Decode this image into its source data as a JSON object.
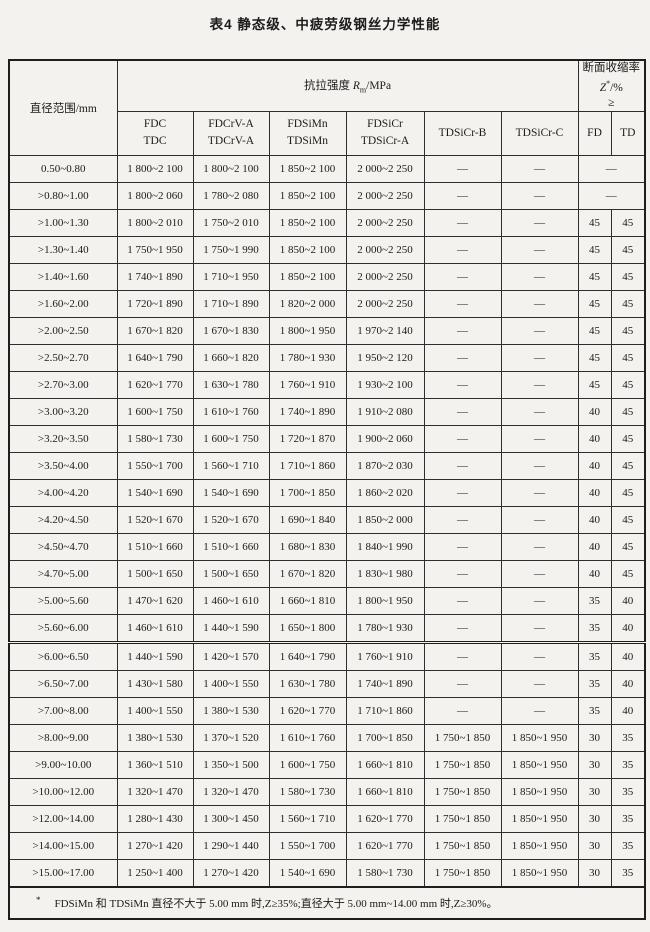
{
  "title": "表4  静态级、中疲劳级钢丝力学性能",
  "table": {
    "diameter_header": "直径范围/mm",
    "tensile_header": {
      "prefix": "抗拉强度 ",
      "symbol": "R",
      "subscript": "m",
      "suffix": "/MPa"
    },
    "reduction_header": {
      "line1": "断面收缩率",
      "symbol": "Z",
      "superscript": "*",
      "suffix": "/%",
      "line3": "≥"
    },
    "grade_columns": [
      {
        "line1": "FDC",
        "line2": "TDC"
      },
      {
        "line1": "FDCrV-A",
        "line2": "TDCrV-A"
      },
      {
        "line1": "FDSiMn",
        "line2": "TDSiMn"
      },
      {
        "line1": "FDSiCr",
        "line2": "TDSiCr-A"
      },
      {
        "line1": "TDSiCr-B",
        "line2": ""
      },
      {
        "line1": "TDSiCr-C",
        "line2": ""
      }
    ],
    "fd_label": "FD",
    "td_label": "TD",
    "dash": "—",
    "rows": [
      {
        "d": "0.50~0.80",
        "c": [
          "1 800~2 100",
          "1 800~2 100",
          "1 850~2 100",
          "2 000~2 250",
          "—",
          "—"
        ],
        "fd": "—",
        "td": "",
        "fdtd_merged": true,
        "section_break": false
      },
      {
        "d": ">0.80~1.00",
        "c": [
          "1 800~2 060",
          "1 780~2 080",
          "1 850~2 100",
          "2 000~2 250",
          "—",
          "—"
        ],
        "fd": "—",
        "td": "",
        "fdtd_merged": true,
        "section_break": false
      },
      {
        "d": ">1.00~1.30",
        "c": [
          "1 800~2 010",
          "1 750~2 010",
          "1 850~2 100",
          "2 000~2 250",
          "—",
          "—"
        ],
        "fd": "45",
        "td": "45",
        "fdtd_merged": false,
        "section_break": false
      },
      {
        "d": ">1.30~1.40",
        "c": [
          "1 750~1 950",
          "1 750~1 990",
          "1 850~2 100",
          "2 000~2 250",
          "—",
          "—"
        ],
        "fd": "45",
        "td": "45",
        "fdtd_merged": false,
        "section_break": false
      },
      {
        "d": ">1.40~1.60",
        "c": [
          "1 740~1 890",
          "1 710~1 950",
          "1 850~2 100",
          "2 000~2 250",
          "—",
          "—"
        ],
        "fd": "45",
        "td": "45",
        "fdtd_merged": false,
        "section_break": false
      },
      {
        "d": ">1.60~2.00",
        "c": [
          "1 720~1 890",
          "1 710~1 890",
          "1 820~2 000",
          "2 000~2 250",
          "—",
          "—"
        ],
        "fd": "45",
        "td": "45",
        "fdtd_merged": false,
        "section_break": false
      },
      {
        "d": ">2.00~2.50",
        "c": [
          "1 670~1 820",
          "1 670~1 830",
          "1 800~1 950",
          "1 970~2 140",
          "—",
          "—"
        ],
        "fd": "45",
        "td": "45",
        "fdtd_merged": false,
        "section_break": false
      },
      {
        "d": ">2.50~2.70",
        "c": [
          "1 640~1 790",
          "1 660~1 820",
          "1 780~1 930",
          "1 950~2 120",
          "—",
          "—"
        ],
        "fd": "45",
        "td": "45",
        "fdtd_merged": false,
        "section_break": false
      },
      {
        "d": ">2.70~3.00",
        "c": [
          "1 620~1 770",
          "1 630~1 780",
          "1 760~1 910",
          "1 930~2 100",
          "—",
          "—"
        ],
        "fd": "45",
        "td": "45",
        "fdtd_merged": false,
        "section_break": false
      },
      {
        "d": ">3.00~3.20",
        "c": [
          "1 600~1 750",
          "1 610~1 760",
          "1 740~1 890",
          "1 910~2 080",
          "—",
          "—"
        ],
        "fd": "40",
        "td": "45",
        "fdtd_merged": false,
        "section_break": false
      },
      {
        "d": ">3.20~3.50",
        "c": [
          "1 580~1 730",
          "1 600~1 750",
          "1 720~1 870",
          "1 900~2 060",
          "—",
          "—"
        ],
        "fd": "40",
        "td": "45",
        "fdtd_merged": false,
        "section_break": false
      },
      {
        "d": ">3.50~4.00",
        "c": [
          "1 550~1 700",
          "1 560~1 710",
          "1 710~1 860",
          "1 870~2 030",
          "—",
          "—"
        ],
        "fd": "40",
        "td": "45",
        "fdtd_merged": false,
        "section_break": false
      },
      {
        "d": ">4.00~4.20",
        "c": [
          "1 540~1 690",
          "1 540~1 690",
          "1 700~1 850",
          "1 860~2 020",
          "—",
          "—"
        ],
        "fd": "40",
        "td": "45",
        "fdtd_merged": false,
        "section_break": false
      },
      {
        "d": ">4.20~4.50",
        "c": [
          "1 520~1 670",
          "1 520~1 670",
          "1 690~1 840",
          "1 850~2 000",
          "—",
          "—"
        ],
        "fd": "40",
        "td": "45",
        "fdtd_merged": false,
        "section_break": false
      },
      {
        "d": ">4.50~4.70",
        "c": [
          "1 510~1 660",
          "1 510~1 660",
          "1 680~1 830",
          "1 840~1 990",
          "—",
          "—"
        ],
        "fd": "40",
        "td": "45",
        "fdtd_merged": false,
        "section_break": false
      },
      {
        "d": ">4.70~5.00",
        "c": [
          "1 500~1 650",
          "1 500~1 650",
          "1 670~1 820",
          "1 830~1 980",
          "—",
          "—"
        ],
        "fd": "40",
        "td": "45",
        "fdtd_merged": false,
        "section_break": false
      },
      {
        "d": ">5.00~5.60",
        "c": [
          "1 470~1 620",
          "1 460~1 610",
          "1 660~1 810",
          "1 800~1 950",
          "—",
          "—"
        ],
        "fd": "35",
        "td": "40",
        "fdtd_merged": false,
        "section_break": false
      },
      {
        "d": ">5.60~6.00",
        "c": [
          "1 460~1 610",
          "1 440~1 590",
          "1 650~1 800",
          "1 780~1 930",
          "—",
          "—"
        ],
        "fd": "35",
        "td": "40",
        "fdtd_merged": false,
        "section_break": false
      },
      {
        "d": ">6.00~6.50",
        "c": [
          "1 440~1 590",
          "1 420~1 570",
          "1 640~1 790",
          "1 760~1 910",
          "—",
          "—"
        ],
        "fd": "35",
        "td": "40",
        "fdtd_merged": false,
        "section_break": true
      },
      {
        "d": ">6.50~7.00",
        "c": [
          "1 430~1 580",
          "1 400~1 550",
          "1 630~1 780",
          "1 740~1 890",
          "—",
          "—"
        ],
        "fd": "35",
        "td": "40",
        "fdtd_merged": false,
        "section_break": false
      },
      {
        "d": ">7.00~8.00",
        "c": [
          "1 400~1 550",
          "1 380~1 530",
          "1 620~1 770",
          "1 710~1 860",
          "—",
          "—"
        ],
        "fd": "35",
        "td": "40",
        "fdtd_merged": false,
        "section_break": false
      },
      {
        "d": ">8.00~9.00",
        "c": [
          "1 380~1 530",
          "1 370~1 520",
          "1 610~1 760",
          "1 700~1 850",
          "1 750~1 850",
          "1 850~1 950"
        ],
        "fd": "30",
        "td": "35",
        "fdtd_merged": false,
        "section_break": false
      },
      {
        "d": ">9.00~10.00",
        "c": [
          "1 360~1 510",
          "1 350~1 500",
          "1 600~1 750",
          "1 660~1 810",
          "1 750~1 850",
          "1 850~1 950"
        ],
        "fd": "30",
        "td": "35",
        "fdtd_merged": false,
        "section_break": false
      },
      {
        "d": ">10.00~12.00",
        "c": [
          "1 320~1 470",
          "1 320~1 470",
          "1 580~1 730",
          "1 660~1 810",
          "1 750~1 850",
          "1 850~1 950"
        ],
        "fd": "30",
        "td": "35",
        "fdtd_merged": false,
        "section_break": false
      },
      {
        "d": ">12.00~14.00",
        "c": [
          "1 280~1 430",
          "1 300~1 450",
          "1 560~1 710",
          "1 620~1 770",
          "1 750~1 850",
          "1 850~1 950"
        ],
        "fd": "30",
        "td": "35",
        "fdtd_merged": false,
        "section_break": false
      },
      {
        "d": ">14.00~15.00",
        "c": [
          "1 270~1 420",
          "1 290~1 440",
          "1 550~1 700",
          "1 620~1 770",
          "1 750~1 850",
          "1 850~1 950"
        ],
        "fd": "30",
        "td": "35",
        "fdtd_merged": false,
        "section_break": false
      },
      {
        "d": ">15.00~17.00",
        "c": [
          "1 250~1 400",
          "1 270~1 420",
          "1 540~1 690",
          "1 580~1 730",
          "1 750~1 850",
          "1 850~1 950"
        ],
        "fd": "30",
        "td": "35",
        "fdtd_merged": false,
        "section_break": false
      }
    ],
    "footnote": {
      "marker": "*",
      "text": "FDSiMn 和 TDSiMn 直径不大于 5.00 mm 时,Z≥35%;直径大于 5.00 mm~14.00 mm 时,Z≥30%。"
    }
  },
  "colors": {
    "paper": "#f4f2ee",
    "ink": "#1b1b1b",
    "border": "#2e2e2e"
  }
}
